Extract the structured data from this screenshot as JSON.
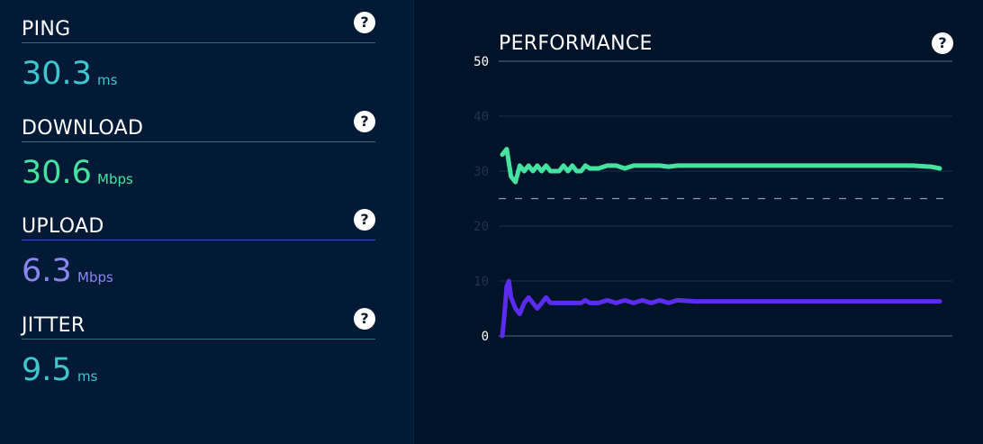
{
  "metrics": {
    "ping": {
      "label": "PING",
      "value": "30.3",
      "unit": "ms"
    },
    "download": {
      "label": "DOWNLOAD",
      "value": "30.6",
      "unit": "Mbps"
    },
    "upload": {
      "label": "UPLOAD",
      "value": "6.3",
      "unit": "Mbps"
    },
    "jitter": {
      "label": "JITTER",
      "value": "9.5",
      "unit": "ms"
    }
  },
  "help_icon": "?",
  "performance": {
    "title": "PERFORMANCE"
  },
  "colors": {
    "ping": "#3fc6d0",
    "download": "#46e3a0",
    "upload": "#5b2cf0",
    "upload_text": "#8a86f0",
    "background": "#00142a"
  },
  "chart_data": {
    "type": "line",
    "title": "PERFORMANCE",
    "ylim": [
      0,
      50
    ],
    "yticks": [
      "0",
      "10",
      "20",
      "30",
      "40",
      "50"
    ],
    "grid": true,
    "reference_line": 25,
    "series": [
      {
        "color": "#46e3a0",
        "x": [
          0,
          1,
          2,
          3,
          4,
          5,
          6,
          7,
          8,
          9,
          10,
          11,
          12,
          13,
          14,
          15,
          16,
          17,
          18,
          19,
          20,
          22,
          24,
          26,
          28,
          30,
          32,
          34,
          36,
          38,
          40,
          42,
          44,
          46,
          48,
          50,
          54,
          58,
          62,
          66,
          70,
          74,
          78,
          82,
          86,
          90,
          94,
          98,
          100
        ],
        "values": [
          33,
          34,
          29,
          28,
          31,
          30,
          31,
          30,
          31,
          30,
          31,
          30,
          30,
          30,
          31,
          30,
          31,
          30,
          30,
          31,
          30.5,
          30.5,
          31,
          31,
          30.5,
          31,
          31,
          31,
          31,
          30.8,
          31,
          31,
          31,
          31,
          31,
          31,
          31,
          31,
          31,
          31,
          31,
          31,
          31,
          31,
          31,
          31,
          31,
          30.8,
          30.5
        ]
      },
      {
        "color": "#5b2cf0",
        "x": [
          0,
          0.5,
          1,
          1.5,
          2,
          3,
          4,
          5,
          6,
          7,
          8,
          9,
          10,
          11,
          12,
          13,
          14,
          15,
          16,
          17,
          18,
          19,
          20,
          22,
          24,
          26,
          28,
          30,
          32,
          34,
          36,
          38,
          40,
          44,
          48,
          52,
          56,
          60,
          64,
          68,
          72,
          76,
          80,
          84,
          88,
          92,
          96,
          100
        ],
        "values": [
          0,
          4,
          9,
          10,
          7,
          5,
          4,
          6,
          7,
          6,
          5,
          6,
          7,
          6,
          6,
          6,
          6,
          6,
          6,
          6,
          6,
          6.5,
          6,
          6,
          6.5,
          6,
          6.5,
          6,
          6.5,
          6,
          6.5,
          6,
          6.5,
          6.3,
          6.3,
          6.3,
          6.3,
          6.3,
          6.3,
          6.3,
          6.3,
          6.3,
          6.3,
          6.3,
          6.3,
          6.3,
          6.3,
          6.3
        ]
      }
    ]
  }
}
